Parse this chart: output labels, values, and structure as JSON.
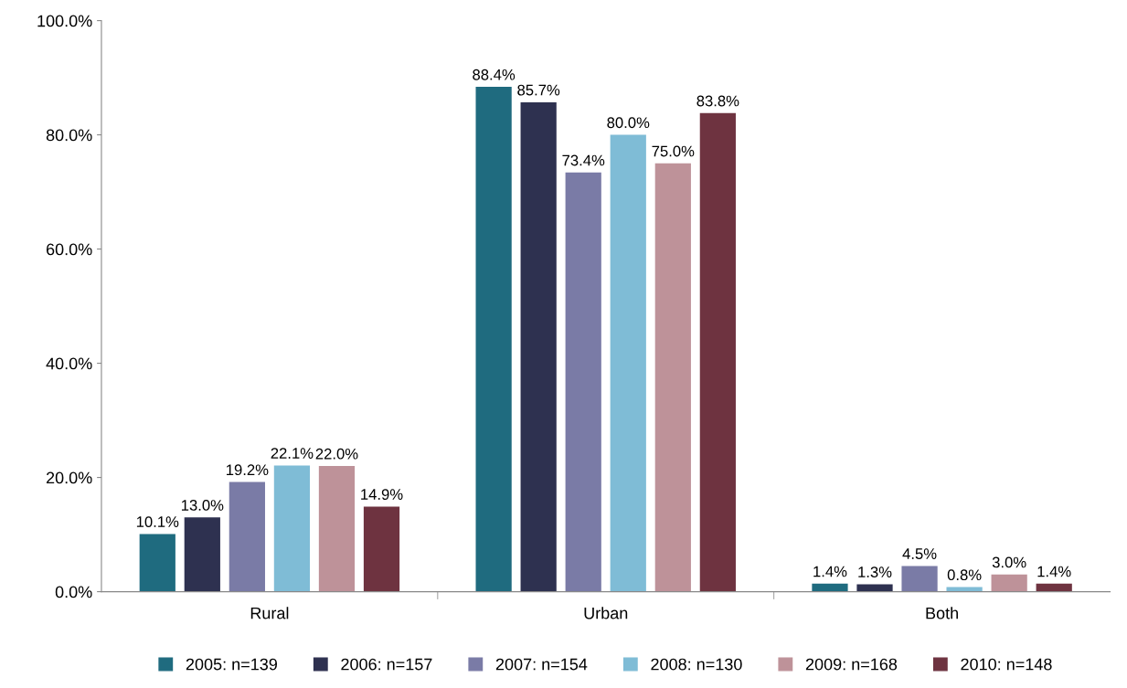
{
  "chart_data": {
    "type": "bar",
    "categories": [
      "Rural",
      "Urban",
      "Both"
    ],
    "series": [
      {
        "name": "2005: n=139",
        "color": "#1f6b7f",
        "values": [
          10.1,
          88.4,
          1.4
        ],
        "value_labels": [
          "10.1%",
          "88.4%",
          "1.4%"
        ]
      },
      {
        "name": "2006: n=157",
        "color": "#2e3150",
        "values": [
          13.0,
          85.7,
          1.3
        ],
        "value_labels": [
          "13.0%",
          "85.7%",
          "1.3%"
        ]
      },
      {
        "name": "2007: n=154",
        "color": "#7a7ba6",
        "values": [
          19.2,
          73.4,
          4.5
        ],
        "value_labels": [
          "19.2%",
          "73.4%",
          "4.5%"
        ]
      },
      {
        "name": "2008: n=130",
        "color": "#7fbcd6",
        "values": [
          22.1,
          80.0,
          0.8
        ],
        "value_labels": [
          "22.1%",
          "80.0%",
          "0.8%"
        ]
      },
      {
        "name": "2009: n=168",
        "color": "#be9299",
        "values": [
          22.0,
          75.0,
          3.0
        ],
        "value_labels": [
          "22.0%",
          "75.0%",
          "3.0%"
        ]
      },
      {
        "name": "2010: n=148",
        "color": "#6e3340",
        "values": [
          14.9,
          83.8,
          1.4
        ],
        "value_labels": [
          "14.9%",
          "83.8%",
          "1.4%"
        ]
      }
    ],
    "ylim": [
      0,
      100
    ],
    "yticks": [
      {
        "value": 0,
        "label": "0.0%"
      },
      {
        "value": 20,
        "label": "20.0%"
      },
      {
        "value": 40,
        "label": "40.0%"
      },
      {
        "value": 60,
        "label": "60.0%"
      },
      {
        "value": 80,
        "label": "80.0%"
      },
      {
        "value": 100,
        "label": "100.0%"
      }
    ],
    "grid": false,
    "legend": "bottom"
  }
}
